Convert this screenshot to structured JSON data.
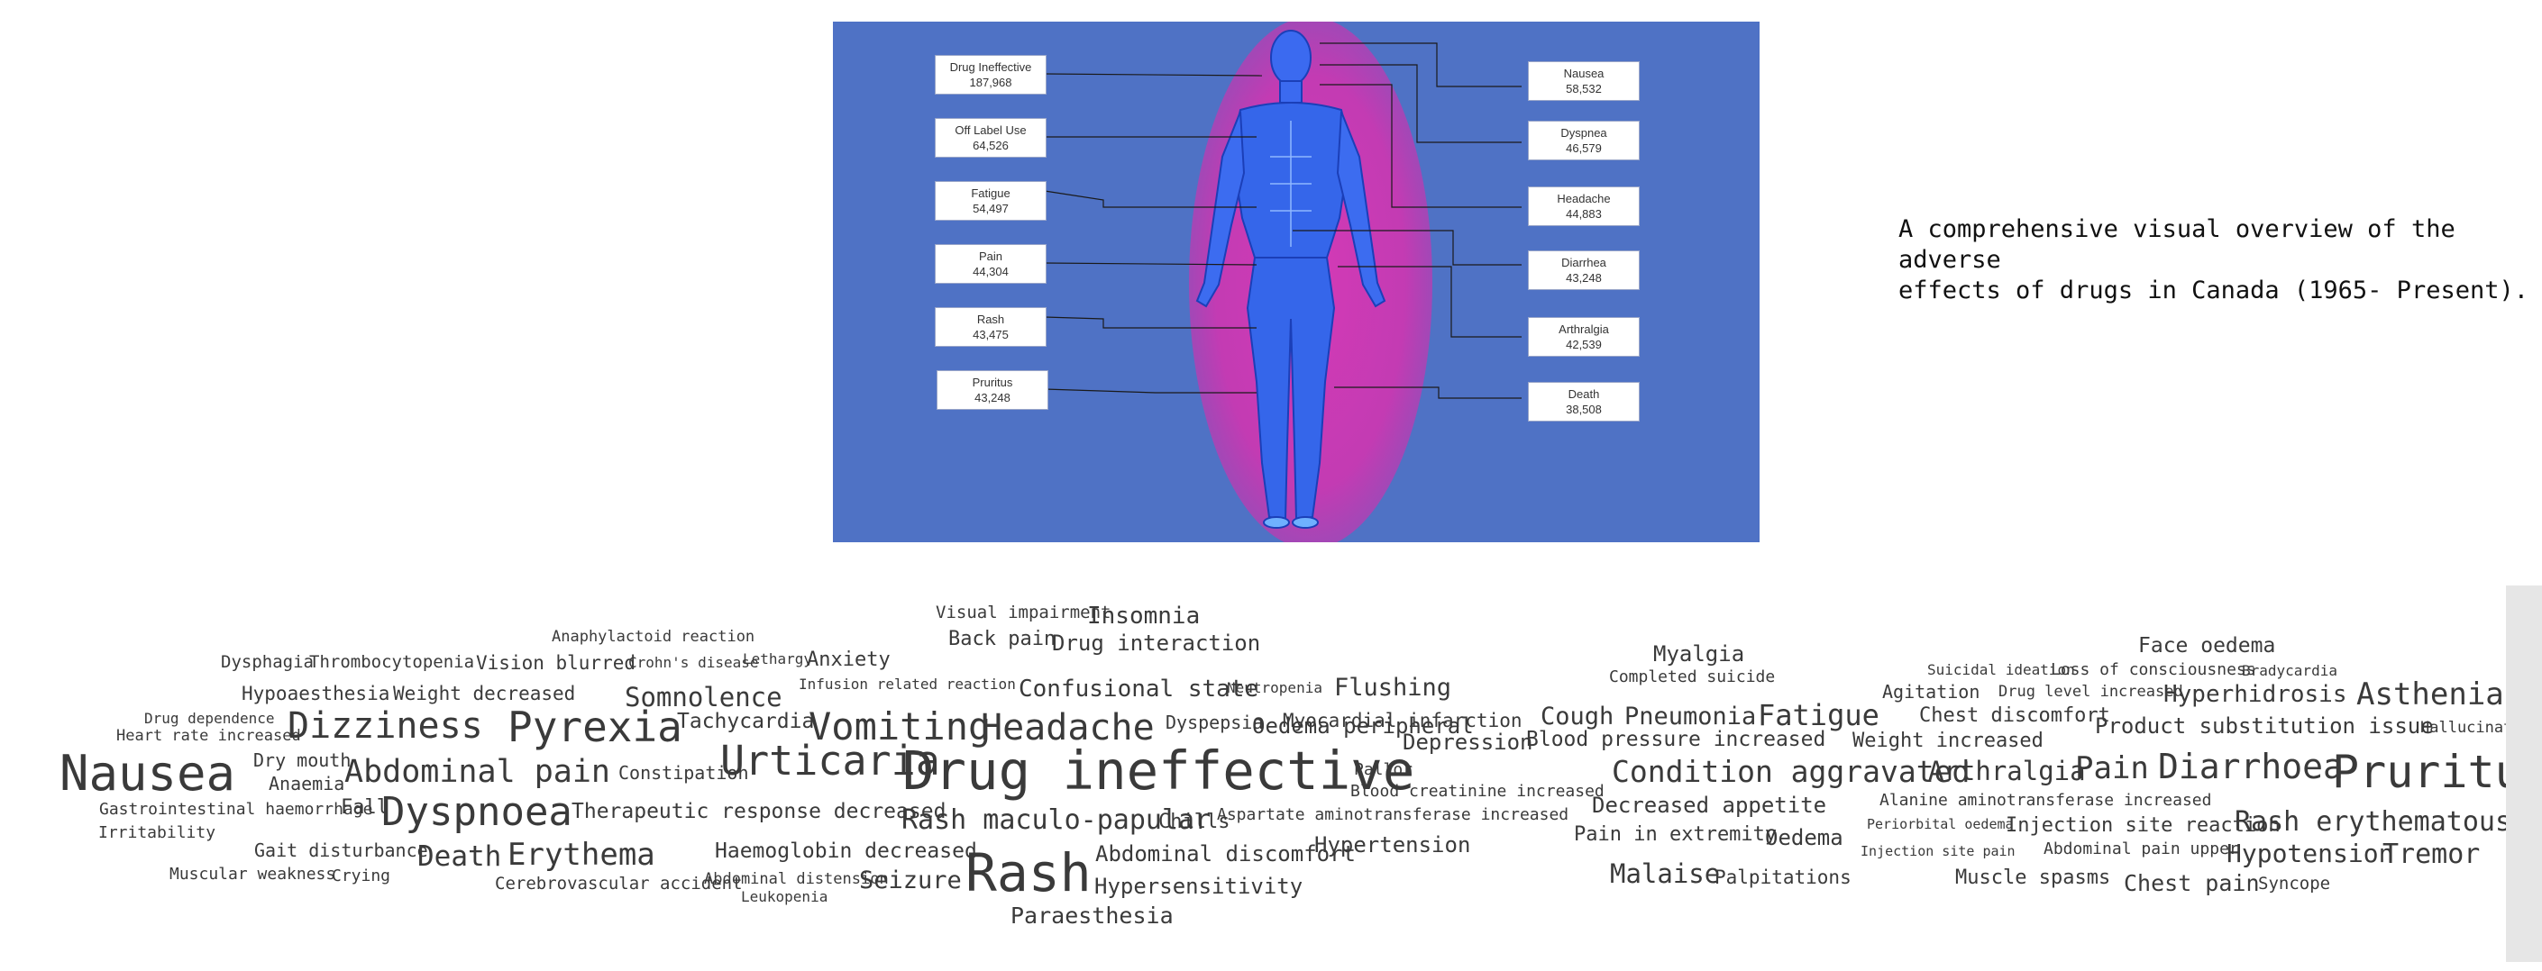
{
  "figure": {
    "effects_left": [
      {
        "label": "Drug Ineffective",
        "value": "187,968"
      },
      {
        "label": "Off Label Use",
        "value": "64,526"
      },
      {
        "label": "Fatigue",
        "value": "54,497"
      },
      {
        "label": "Pain",
        "value": "44,304"
      },
      {
        "label": "Rash",
        "value": "43,475"
      },
      {
        "label": "Pruritus",
        "value": "43,248"
      }
    ],
    "effects_right": [
      {
        "label": "Nausea",
        "value": "58,532"
      },
      {
        "label": "Dyspnea",
        "value": "46,579"
      },
      {
        "label": "Headache",
        "value": "44,883"
      },
      {
        "label": "Diarrhea",
        "value": "43,248"
      },
      {
        "label": "Arthralgia",
        "value": "42,539"
      },
      {
        "label": "Death",
        "value": "38,508"
      }
    ],
    "colors": {
      "background": "#4f72c5",
      "halo": "#c33bb3",
      "body": "#2f5ee0"
    }
  },
  "caption": "A comprehensive visual overview of the adverse\neffects of drugs in Canada (1965- Present).",
  "wordcloud": {
    "left_cluster": [
      "Visual impairment",
      "Insomnia",
      "Anaphylactoid reaction",
      "Back pain",
      "Drug interaction",
      "Dysphagia",
      "Thrombocytopenia",
      "Vision blurred",
      "Crohn's disease",
      "Lethargy",
      "Anxiety",
      "Infusion related reaction",
      "Confusional state",
      "Neutropenia",
      "Flushing",
      "Hypoaesthesia",
      "Weight decreased",
      "Somnolence",
      "Myocardial infarction",
      "Drug dependence",
      "Tachycardia",
      "Vomiting",
      "Headache",
      "Dyspepsia",
      "Oedema peripheral",
      "Heart rate increased",
      "Dizziness",
      "Pyrexia",
      "Depression",
      "Nausea",
      "Dry mouth",
      "Urticaria",
      "Drug ineffective",
      "Pallor",
      "Anaemia",
      "Abdominal pain",
      "Constipation",
      "Blood creatinine increased",
      "Gastrointestinal haemorrhage",
      "Fall",
      "Dyspnoea",
      "Therapeutic response decreased",
      "Rash maculo-papular",
      "Chills",
      "Aspartate aminotransferase increased",
      "Irritability",
      "Gait disturbance",
      "Death",
      "Erythema",
      "Haemoglobin decreased",
      "Abdominal discomfort",
      "Hypertension",
      "Rash",
      "Muscular weakness",
      "Crying",
      "Cerebrovascular accident",
      "Abdominal distension",
      "Seizure",
      "Hypersensitivity",
      "Leukopenia",
      "Paraesthesia"
    ],
    "right_cluster": [
      "Face oedema",
      "Myalgia",
      "Suicidal ideation",
      "Loss of consciousness",
      "Bradycardia",
      "Completed suicide",
      "Agitation",
      "Drug level increased",
      "Hyperhidrosis",
      "Asthenia",
      "Cough",
      "Pneumonia",
      "Fatigue",
      "Chest discomfort",
      "Product substitution issue",
      "Hallucinat",
      "Blood pressure increased",
      "Weight increased",
      "Condition aggravated",
      "Arthralgia",
      "Pain",
      "Diarrhoea",
      "Pruritus",
      "Decreased appetite",
      "Alanine aminotransferase increased",
      "Periorbital oedema",
      "Injection site reaction",
      "Rash erythematous",
      "Pain in extremity",
      "Oedema",
      "Injection site pain",
      "Abdominal pain upper",
      "Hypotension",
      "Tremor",
      "Malaise",
      "Palpitations",
      "Muscle spasms",
      "Chest pain",
      "Syncope"
    ]
  }
}
